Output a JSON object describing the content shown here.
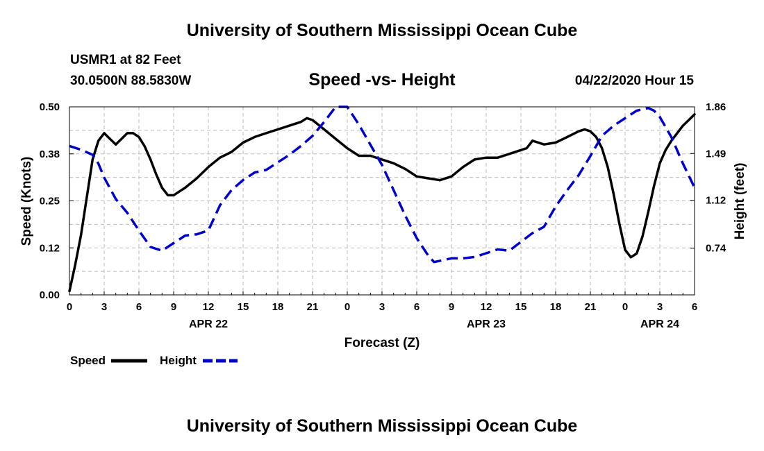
{
  "header": {
    "title": "University of Southern Mississippi Ocean Cube",
    "station": "USMR1 at 82 Feet",
    "coords": "30.0500N 88.5830W",
    "datetime": "04/22/2020 Hour 15"
  },
  "footer": {
    "title": "University of Southern Mississippi Ocean Cube"
  },
  "colors": {
    "speed": "#000000",
    "height": "#0000cc",
    "grid": "#bbbbbb"
  },
  "chart_data": {
    "type": "line",
    "title": "Speed -vs- Height",
    "xlabel": "Forecast (Z)",
    "ylabel": "Speed (Knots)",
    "y2label": "Height (feet)",
    "xlim": [
      0,
      54
    ],
    "ylim": [
      0,
      0.5
    ],
    "y2lim": [
      0.37,
      1.86
    ],
    "x_ticks": [
      0,
      3,
      6,
      9,
      12,
      15,
      18,
      21,
      24,
      27,
      30,
      33,
      36,
      39,
      42,
      45,
      48,
      51,
      54
    ],
    "x_tick_labels": [
      "0",
      "3",
      "6",
      "9",
      "12",
      "15",
      "18",
      "21",
      "0",
      "3",
      "6",
      "9",
      "12",
      "15",
      "18",
      "21",
      "0",
      "3",
      "6"
    ],
    "date_labels": [
      {
        "x": 12,
        "label": "APR 22"
      },
      {
        "x": 36,
        "label": "APR 23"
      },
      {
        "x": 51,
        "label": "APR 24"
      }
    ],
    "y_ticks": [
      0.0,
      0.125,
      0.25,
      0.375,
      0.5
    ],
    "y_tick_labels": [
      "0.00",
      "0.12",
      "0.25",
      "0.38",
      "0.50"
    ],
    "y2_ticks": [
      0.74,
      1.12,
      1.49,
      1.86
    ],
    "y2_tick_labels": [
      "0.74",
      "1.12",
      "1.49",
      "1.86"
    ],
    "grid": true,
    "legend": [
      "Speed",
      "Height"
    ],
    "series": [
      {
        "name": "Speed",
        "axis": "left",
        "style": "solid",
        "x": [
          0,
          0.5,
          1,
          1.5,
          2,
          2.5,
          3,
          3.5,
          4,
          4.5,
          5,
          5.5,
          6,
          6.5,
          7,
          7.5,
          8,
          8.5,
          9,
          9.5,
          10,
          11,
          12,
          13,
          14,
          15,
          16,
          17,
          18,
          19,
          20,
          20.5,
          21,
          22,
          23,
          24,
          25,
          26,
          27,
          28,
          29,
          30,
          31,
          32,
          33,
          34,
          35,
          36,
          37,
          38,
          39,
          39.5,
          40,
          40.5,
          41,
          42,
          43,
          44,
          44.5,
          45,
          45.5,
          46,
          46.5,
          47,
          47.5,
          48,
          48.5,
          49,
          49.5,
          50,
          50.5,
          51,
          51.5,
          52,
          53,
          53.5,
          54
        ],
        "values": [
          0.01,
          0.08,
          0.16,
          0.26,
          0.36,
          0.41,
          0.43,
          0.415,
          0.4,
          0.415,
          0.43,
          0.43,
          0.42,
          0.395,
          0.36,
          0.32,
          0.285,
          0.265,
          0.265,
          0.275,
          0.285,
          0.31,
          0.34,
          0.365,
          0.38,
          0.405,
          0.42,
          0.43,
          0.44,
          0.45,
          0.46,
          0.47,
          0.465,
          0.44,
          0.415,
          0.39,
          0.37,
          0.37,
          0.36,
          0.35,
          0.335,
          0.315,
          0.31,
          0.305,
          0.315,
          0.34,
          0.36,
          0.365,
          0.365,
          0.375,
          0.385,
          0.39,
          0.41,
          0.405,
          0.4,
          0.405,
          0.42,
          0.435,
          0.44,
          0.435,
          0.42,
          0.39,
          0.34,
          0.27,
          0.19,
          0.12,
          0.1,
          0.11,
          0.155,
          0.22,
          0.29,
          0.35,
          0.385,
          0.41,
          0.45,
          0.465,
          0.48
        ]
      },
      {
        "name": "Height",
        "axis": "right",
        "style": "dashed",
        "x": [
          0,
          1,
          2,
          2.5,
          3,
          4,
          5,
          6,
          7,
          8,
          9,
          10,
          11,
          12,
          13,
          14,
          15,
          16,
          17,
          18,
          19,
          20,
          21,
          22,
          23,
          24,
          25,
          26,
          27,
          28,
          29,
          30,
          31,
          31.5,
          32,
          33,
          34,
          35,
          36,
          37,
          38,
          39,
          40,
          41,
          42,
          43,
          44,
          45,
          46,
          47,
          48,
          49,
          50,
          50.5,
          51,
          52,
          53,
          54
        ],
        "values": [
          1.55,
          1.52,
          1.48,
          1.41,
          1.3,
          1.13,
          1.02,
          0.88,
          0.75,
          0.72,
          0.78,
          0.84,
          0.85,
          0.88,
          1.08,
          1.2,
          1.28,
          1.34,
          1.36,
          1.42,
          1.48,
          1.55,
          1.63,
          1.74,
          1.86,
          1.86,
          1.72,
          1.56,
          1.4,
          1.2,
          1.0,
          0.82,
          0.68,
          0.63,
          0.64,
          0.66,
          0.66,
          0.67,
          0.7,
          0.73,
          0.72,
          0.79,
          0.86,
          0.91,
          1.07,
          1.2,
          1.32,
          1.47,
          1.63,
          1.71,
          1.77,
          1.83,
          1.85,
          1.83,
          1.78,
          1.62,
          1.41,
          1.22
        ]
      }
    ]
  }
}
